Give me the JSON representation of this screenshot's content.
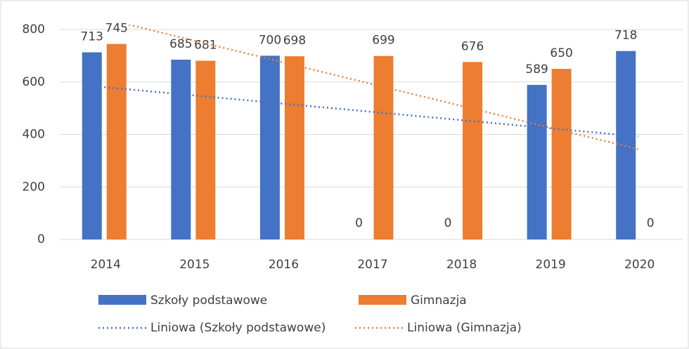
{
  "chart_data": {
    "type": "bar",
    "categories": [
      "2014",
      "2015",
      "2016",
      "2017",
      "2018",
      "2019",
      "2020"
    ],
    "series": [
      {
        "name": "Szkoły podstawowe",
        "color": "#4472c4",
        "values": [
          713,
          685,
          700,
          0,
          0,
          589,
          718
        ],
        "trendline": {
          "name": "Liniowa (Szkoły podstawowe)",
          "color": "#4472c4",
          "style": "dotted"
        }
      },
      {
        "name": "Gimnazja",
        "color": "#ed7d31",
        "values": [
          745,
          681,
          698,
          699,
          676,
          650,
          0
        ],
        "trendline": {
          "name": "Liniowa (Gimnazja)",
          "color": "#ed7d31",
          "style": "dotted"
        }
      }
    ],
    "ylim": [
      0,
      800
    ],
    "yticks": [
      0,
      200,
      400,
      600,
      800
    ],
    "grid": true,
    "legend": "bottom"
  }
}
